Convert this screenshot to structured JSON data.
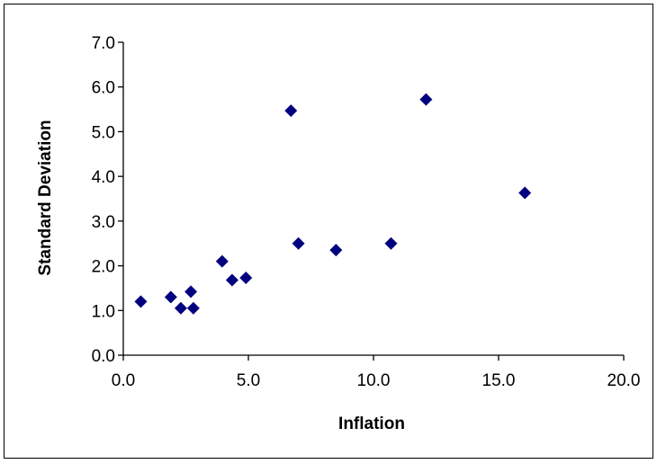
{
  "chart_data": {
    "type": "scatter",
    "title": "",
    "xlabel": "Inflation",
    "ylabel": "Standard Deviation",
    "xlim": [
      0.0,
      20.0
    ],
    "ylim": [
      0.0,
      7.0
    ],
    "x_ticks": [
      "0.0",
      "5.0",
      "10.0",
      "15.0",
      "20.0"
    ],
    "y_ticks": [
      "0.0",
      "1.0",
      "2.0",
      "3.0",
      "4.0",
      "5.0",
      "6.0",
      "7.0"
    ],
    "grid": false,
    "legend": "none",
    "marker": "diamond",
    "marker_color": "#00007f",
    "points": [
      {
        "x": 0.7,
        "y": 1.2
      },
      {
        "x": 1.9,
        "y": 1.3
      },
      {
        "x": 2.3,
        "y": 1.05
      },
      {
        "x": 2.7,
        "y": 1.42
      },
      {
        "x": 2.8,
        "y": 1.05
      },
      {
        "x": 3.95,
        "y": 2.1
      },
      {
        "x": 4.35,
        "y": 1.68
      },
      {
        "x": 4.9,
        "y": 1.73
      },
      {
        "x": 6.7,
        "y": 5.47
      },
      {
        "x": 7.0,
        "y": 2.5
      },
      {
        "x": 8.5,
        "y": 2.35
      },
      {
        "x": 10.7,
        "y": 2.5
      },
      {
        "x": 12.1,
        "y": 5.72
      },
      {
        "x": 16.05,
        "y": 3.63
      }
    ]
  }
}
